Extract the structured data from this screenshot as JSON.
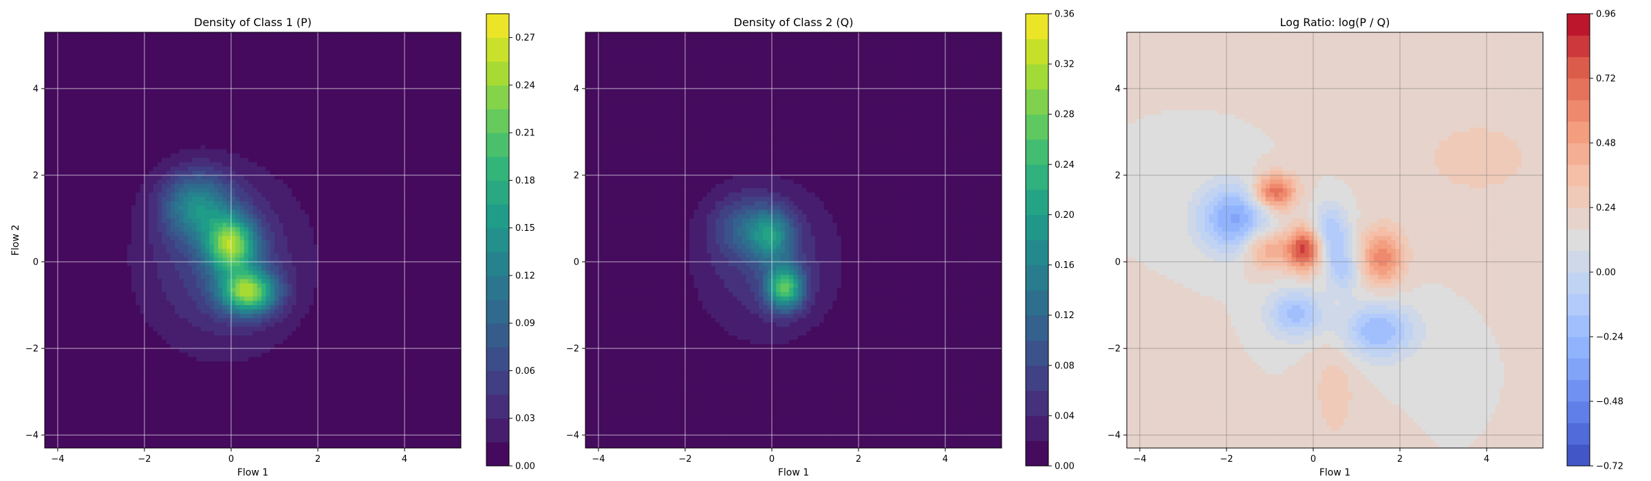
{
  "chart_data": [
    {
      "type": "heatmap",
      "title": "Density of Class 1 (P)",
      "xlabel": "Flow 1",
      "ylabel": "Flow 2",
      "xlim": [
        -4.3,
        5.3
      ],
      "ylim": [
        -4.3,
        5.3
      ],
      "xticks": [
        -4,
        -2,
        0,
        2,
        4
      ],
      "yticks": [
        -4,
        -2,
        0,
        2,
        4
      ],
      "xtick_labels": [
        "−4",
        "−2",
        "0",
        "2",
        "4"
      ],
      "ytick_labels": [
        "−4",
        "−2",
        "0",
        "2",
        "4"
      ],
      "grid": true,
      "colormap": "viridis",
      "colorbar": {
        "min": 0.0,
        "max": 0.285,
        "ticks": [
          0.0,
          0.03,
          0.06,
          0.09,
          0.12,
          0.15,
          0.18,
          0.21,
          0.24,
          0.27
        ],
        "tick_labels": [
          "0.00",
          "0.03",
          "0.06",
          "0.09",
          "0.12",
          "0.15",
          "0.18",
          "0.21",
          "0.24",
          "0.27"
        ],
        "levels": 19
      },
      "components": [
        {
          "center": [
            -0.8,
            1.3
          ],
          "spread": [
            0.55,
            0.55
          ],
          "peak": 0.11
        },
        {
          "center": [
            0.0,
            0.4
          ],
          "spread": [
            0.4,
            0.45
          ],
          "peak": 0.19
        },
        {
          "center": [
            0.4,
            -0.7
          ],
          "spread": [
            0.45,
            0.35
          ],
          "peak": 0.2
        },
        {
          "center": [
            -0.2,
            0.0
          ],
          "spread": [
            1.2,
            1.3
          ],
          "peak": 0.05
        },
        {
          "center": [
            -0.1,
            0.0
          ],
          "spread": [
            1.9,
            2.0
          ],
          "peak": 0.01
        }
      ]
    },
    {
      "type": "heatmap",
      "title": "Density of Class 2 (Q)",
      "xlabel": "Flow 1",
      "ylabel": "",
      "xlim": [
        -4.3,
        5.3
      ],
      "ylim": [
        -4.3,
        5.3
      ],
      "xticks": [
        -4,
        -2,
        0,
        2,
        4
      ],
      "yticks": [
        -4,
        -2,
        0,
        2,
        4
      ],
      "xtick_labels": [
        "−4",
        "−2",
        "0",
        "2",
        "4"
      ],
      "ytick_labels": [
        "−4",
        "−2",
        "0",
        "2",
        "4"
      ],
      "grid": true,
      "colormap": "viridis",
      "colorbar": {
        "min": 0.0,
        "max": 0.36,
        "ticks": [
          0.0,
          0.04,
          0.08,
          0.12,
          0.16,
          0.2,
          0.24,
          0.28,
          0.32,
          0.36
        ],
        "tick_labels": [
          "0.00",
          "0.04",
          "0.08",
          "0.12",
          "0.16",
          "0.20",
          "0.24",
          "0.28",
          "0.32",
          "0.36"
        ],
        "levels": 18
      },
      "components": [
        {
          "center": [
            0.3,
            -0.6
          ],
          "spread": [
            0.3,
            0.35
          ],
          "peak": 0.22
        },
        {
          "center": [
            0.0,
            0.6
          ],
          "spread": [
            0.35,
            0.4
          ],
          "peak": 0.12
        },
        {
          "center": [
            -0.6,
            0.8
          ],
          "spread": [
            0.55,
            0.5
          ],
          "peak": 0.07
        },
        {
          "center": [
            -0.1,
            0.0
          ],
          "spread": [
            1.1,
            1.2
          ],
          "peak": 0.05
        },
        {
          "center": [
            -0.1,
            0.0
          ],
          "spread": [
            1.7,
            1.8
          ],
          "peak": 0.01
        }
      ]
    },
    {
      "type": "heatmap",
      "title": "Log Ratio: log(P / Q)",
      "xlabel": "Flow 1",
      "ylabel": "",
      "xlim": [
        -4.3,
        5.3
      ],
      "ylim": [
        -4.3,
        5.3
      ],
      "xticks": [
        -4,
        -2,
        0,
        2,
        4
      ],
      "yticks": [
        -4,
        -2,
        0,
        2,
        4
      ],
      "xtick_labels": [
        "−4",
        "−2",
        "0",
        "2",
        "4"
      ],
      "ytick_labels": [
        "−4",
        "−2",
        "0",
        "2",
        "4"
      ],
      "grid": true,
      "colormap": "coolwarm",
      "colorbar": {
        "min": -0.72,
        "max": 0.96,
        "ticks": [
          -0.72,
          -0.48,
          -0.24,
          0.0,
          0.24,
          0.48,
          0.72,
          0.96
        ],
        "tick_labels": [
          "−0.72",
          "−0.48",
          "−0.24",
          "0.00",
          "0.24",
          "0.48",
          "0.72",
          "0.96"
        ],
        "levels": 21
      },
      "baseline": 0.16,
      "components": [
        {
          "center": [
            -0.9,
            1.6
          ],
          "spread": [
            0.35,
            0.3
          ],
          "peak": 0.6
        },
        {
          "center": [
            -0.2,
            0.3
          ],
          "spread": [
            0.3,
            0.35
          ],
          "peak": 0.7
        },
        {
          "center": [
            -1.1,
            0.3
          ],
          "spread": [
            0.35,
            0.35
          ],
          "peak": 0.35
        },
        {
          "center": [
            1.6,
            0.1
          ],
          "spread": [
            0.35,
            0.45
          ],
          "peak": 0.45
        },
        {
          "center": [
            -1.8,
            1.0
          ],
          "spread": [
            0.6,
            0.55
          ],
          "peak": -0.5
        },
        {
          "center": [
            0.4,
            0.6
          ],
          "spread": [
            0.3,
            0.5
          ],
          "peak": -0.35
        },
        {
          "center": [
            1.5,
            -1.6
          ],
          "spread": [
            0.6,
            0.45
          ],
          "peak": -0.4
        },
        {
          "center": [
            -0.4,
            -1.2
          ],
          "spread": [
            0.45,
            0.4
          ],
          "peak": -0.35
        },
        {
          "center": [
            0.7,
            -0.2
          ],
          "spread": [
            0.25,
            0.35
          ],
          "peak": -0.25
        },
        {
          "center": [
            0.5,
            -3.0
          ],
          "spread": [
            0.4,
            1.0
          ],
          "peak": 0.12
        },
        {
          "center": [
            3.8,
            2.4
          ],
          "spread": [
            1.5,
            1.0
          ],
          "peak": 0.1
        },
        {
          "center": [
            -3.5,
            -2.5
          ],
          "spread": [
            0.7,
            0.7
          ],
          "peak": 0.08
        }
      ]
    }
  ]
}
